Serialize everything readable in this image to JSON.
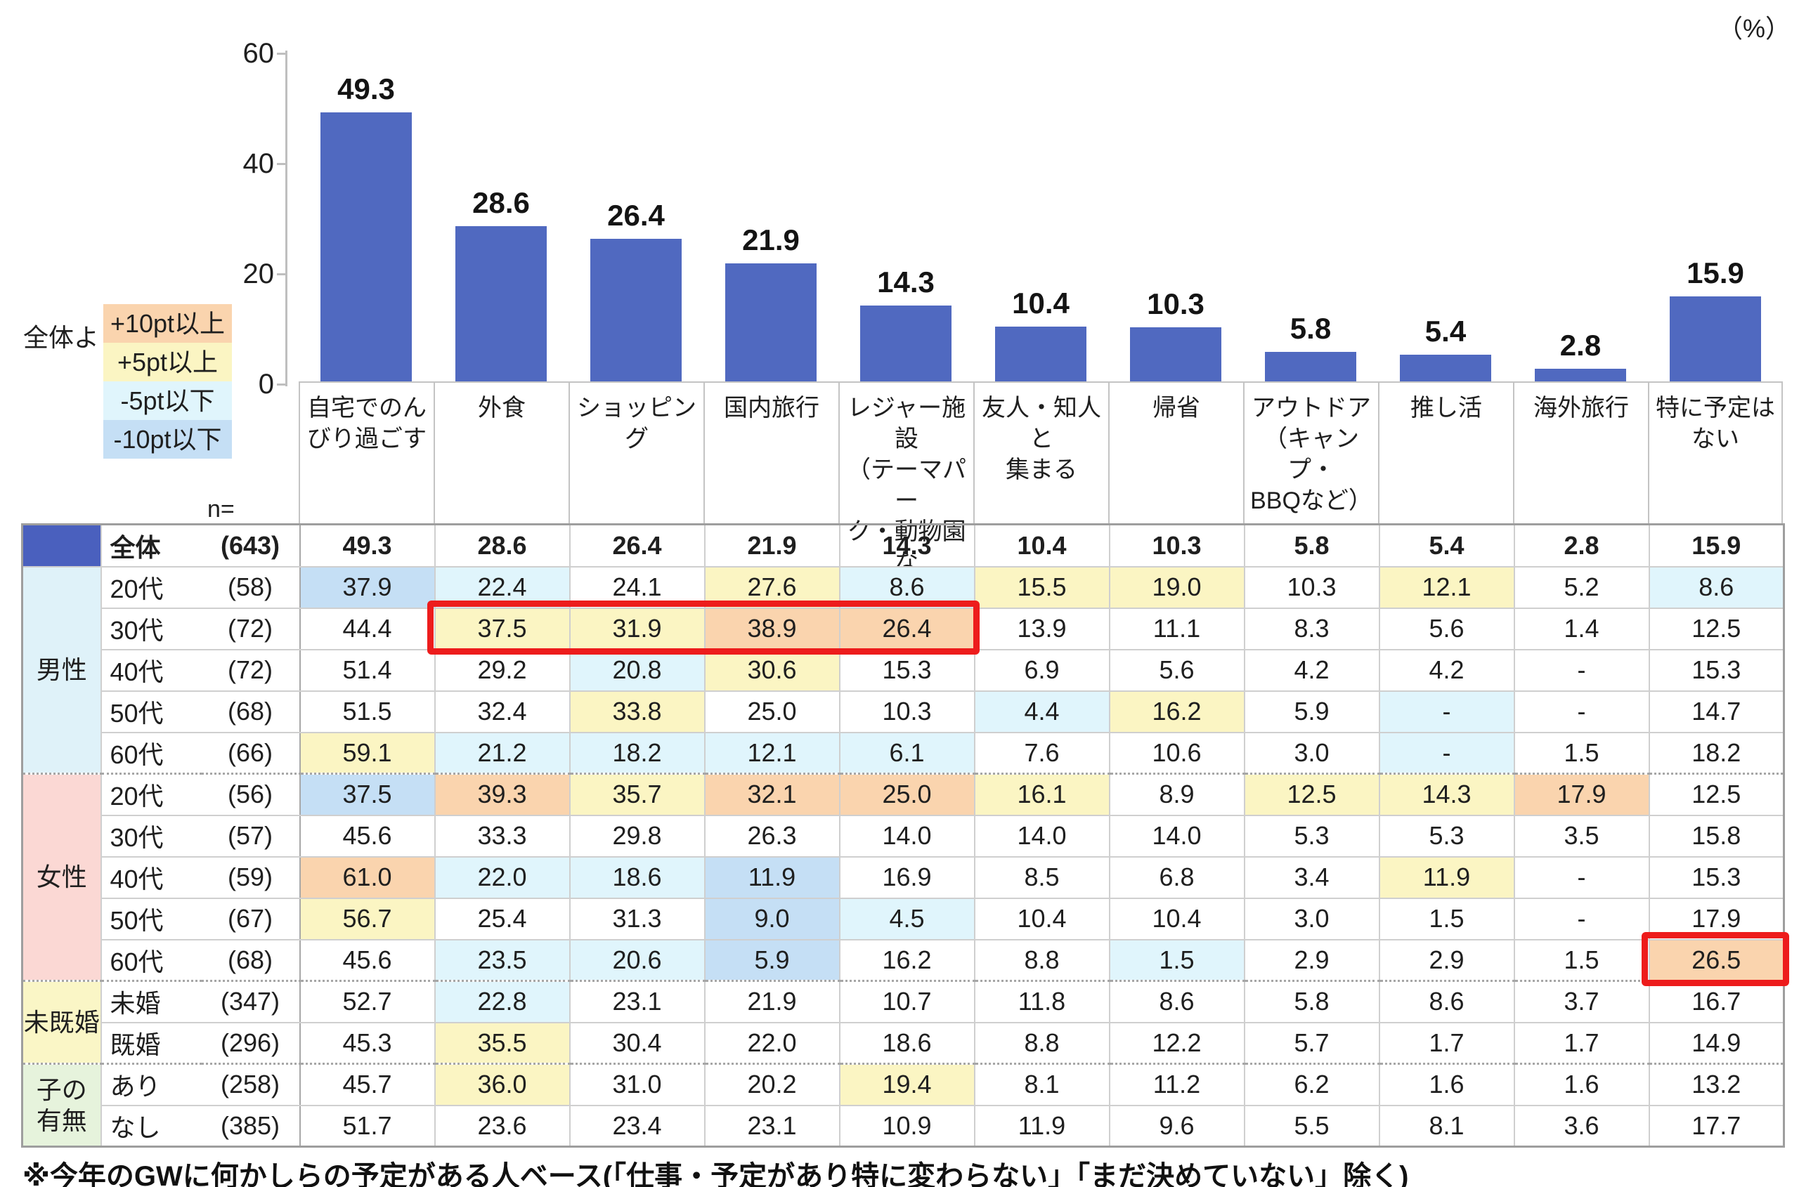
{
  "unit_label": "（%）",
  "legend": {
    "title": "全体より",
    "items": [
      {
        "label": "+10pt以上",
        "key": "plus10"
      },
      {
        "label": "+5pt以上",
        "key": "plus5"
      },
      {
        "label": "-5pt以下",
        "key": "minus5"
      },
      {
        "label": "-10pt以下",
        "key": "minus10"
      }
    ]
  },
  "colors": {
    "bar": "#5069C0",
    "header_blue": "#4A60BE",
    "plus10": "#FAD4AE",
    "plus5": "#FBF5C3",
    "minus5": "#E0F5FC",
    "minus10": "#C5DFF5",
    "group_male": "#DFF2F9",
    "group_female": "#FBD8D4",
    "group_marriage": "#FAF6C6",
    "group_child": "#E6F3DC",
    "red_box": "#ED1C1C"
  },
  "chart_data": {
    "type": "bar",
    "title": "",
    "unit": "%",
    "categories": [
      "自宅でのんびり過ごす",
      "外食",
      "ショッピング",
      "国内旅行",
      "レジャー施設（テーマパーク・動物園など）",
      "友人・知人と集まる",
      "帰省",
      "アウトドア（キャンプ・BBQなど）",
      "推し活",
      "海外旅行",
      "特に予定はない"
    ],
    "values": [
      49.3,
      28.6,
      26.4,
      21.9,
      14.3,
      10.4,
      10.3,
      5.8,
      5.4,
      2.8,
      15.9
    ],
    "ylim": [
      0,
      60
    ],
    "yticks": [
      0,
      20,
      40,
      60
    ],
    "grid": false,
    "legend_position": "left",
    "value_labels": true,
    "bar_color": "#5069C0"
  },
  "category_labels_wrapped": [
    "自宅でのん\nびり過ごす",
    "外食",
    "ショッピング",
    "国内旅行",
    "レジャー施設\n（テーマパー\nク・動物園な\nど）",
    "友人・知人と\n集まる",
    "帰省",
    "アウトドア\n（キャンプ・\nBBQなど）",
    "推し活",
    "海外旅行",
    "特に予定は\nない"
  ],
  "table": {
    "n_header": "n=",
    "header_row": {
      "label": "全体",
      "n": "(643)",
      "values": [
        "49.3",
        "28.6",
        "26.4",
        "21.9",
        "14.3",
        "10.4",
        "10.3",
        "5.8",
        "5.4",
        "2.8",
        "15.9"
      ]
    },
    "groups": [
      {
        "label": "男性",
        "key": "group_male",
        "rows": [
          {
            "label": "20代",
            "n": "(58)",
            "cells": [
              [
                "37.9",
                "m10"
              ],
              [
                "22.4",
                "m5"
              ],
              [
                "24.1",
                ""
              ],
              [
                "27.6",
                "p5"
              ],
              [
                "8.6",
                "m5"
              ],
              [
                "15.5",
                "p5"
              ],
              [
                "19.0",
                "p5"
              ],
              [
                "10.3",
                ""
              ],
              [
                "12.1",
                "p5"
              ],
              [
                "5.2",
                ""
              ],
              [
                "8.6",
                "m5"
              ]
            ]
          },
          {
            "label": "30代",
            "n": "(72)",
            "cells": [
              [
                "44.4",
                ""
              ],
              [
                "37.5",
                "p5"
              ],
              [
                "31.9",
                "p5"
              ],
              [
                "38.9",
                "p10"
              ],
              [
                "26.4",
                "p10"
              ],
              [
                "13.9",
                ""
              ],
              [
                "11.1",
                ""
              ],
              [
                "8.3",
                ""
              ],
              [
                "5.6",
                ""
              ],
              [
                "1.4",
                ""
              ],
              [
                "12.5",
                ""
              ]
            ]
          },
          {
            "label": "40代",
            "n": "(72)",
            "cells": [
              [
                "51.4",
                ""
              ],
              [
                "29.2",
                ""
              ],
              [
                "20.8",
                "m5"
              ],
              [
                "30.6",
                "p5"
              ],
              [
                "15.3",
                ""
              ],
              [
                "6.9",
                ""
              ],
              [
                "5.6",
                ""
              ],
              [
                "4.2",
                ""
              ],
              [
                "4.2",
                ""
              ],
              [
                "-",
                ""
              ],
              [
                "15.3",
                ""
              ]
            ]
          },
          {
            "label": "50代",
            "n": "(68)",
            "cells": [
              [
                "51.5",
                ""
              ],
              [
                "32.4",
                ""
              ],
              [
                "33.8",
                "p5"
              ],
              [
                "25.0",
                ""
              ],
              [
                "10.3",
                ""
              ],
              [
                "4.4",
                "m5"
              ],
              [
                "16.2",
                "p5"
              ],
              [
                "5.9",
                ""
              ],
              [
                "-",
                "m5"
              ],
              [
                "-",
                ""
              ],
              [
                "14.7",
                ""
              ]
            ]
          },
          {
            "label": "60代",
            "n": "(66)",
            "cells": [
              [
                "59.1",
                "p5"
              ],
              [
                "21.2",
                "m5"
              ],
              [
                "18.2",
                "m5"
              ],
              [
                "12.1",
                "m5"
              ],
              [
                "6.1",
                "m5"
              ],
              [
                "7.6",
                ""
              ],
              [
                "10.6",
                ""
              ],
              [
                "3.0",
                ""
              ],
              [
                "-",
                "m5"
              ],
              [
                "1.5",
                ""
              ],
              [
                "18.2",
                ""
              ]
            ]
          }
        ]
      },
      {
        "label": "女性",
        "key": "group_female",
        "rows": [
          {
            "label": "20代",
            "n": "(56)",
            "cells": [
              [
                "37.5",
                "m10"
              ],
              [
                "39.3",
                "p10"
              ],
              [
                "35.7",
                "p5"
              ],
              [
                "32.1",
                "p10"
              ],
              [
                "25.0",
                "p10"
              ],
              [
                "16.1",
                "p5"
              ],
              [
                "8.9",
                ""
              ],
              [
                "12.5",
                "p5"
              ],
              [
                "14.3",
                "p5"
              ],
              [
                "17.9",
                "p10"
              ],
              [
                "12.5",
                ""
              ]
            ]
          },
          {
            "label": "30代",
            "n": "(57)",
            "cells": [
              [
                "45.6",
                ""
              ],
              [
                "33.3",
                ""
              ],
              [
                "29.8",
                ""
              ],
              [
                "26.3",
                ""
              ],
              [
                "14.0",
                ""
              ],
              [
                "14.0",
                ""
              ],
              [
                "14.0",
                ""
              ],
              [
                "5.3",
                ""
              ],
              [
                "5.3",
                ""
              ],
              [
                "3.5",
                ""
              ],
              [
                "15.8",
                ""
              ]
            ]
          },
          {
            "label": "40代",
            "n": "(59)",
            "cells": [
              [
                "61.0",
                "p10"
              ],
              [
                "22.0",
                "m5"
              ],
              [
                "18.6",
                "m5"
              ],
              [
                "11.9",
                "m10"
              ],
              [
                "16.9",
                ""
              ],
              [
                "8.5",
                ""
              ],
              [
                "6.8",
                ""
              ],
              [
                "3.4",
                ""
              ],
              [
                "11.9",
                "p5"
              ],
              [
                "-",
                ""
              ],
              [
                "15.3",
                ""
              ]
            ]
          },
          {
            "label": "50代",
            "n": "(67)",
            "cells": [
              [
                "56.7",
                "p5"
              ],
              [
                "25.4",
                ""
              ],
              [
                "31.3",
                ""
              ],
              [
                "9.0",
                "m10"
              ],
              [
                "4.5",
                "m5"
              ],
              [
                "10.4",
                ""
              ],
              [
                "10.4",
                ""
              ],
              [
                "3.0",
                ""
              ],
              [
                "1.5",
                ""
              ],
              [
                "-",
                ""
              ],
              [
                "17.9",
                ""
              ]
            ]
          },
          {
            "label": "60代",
            "n": "(68)",
            "cells": [
              [
                "45.6",
                ""
              ],
              [
                "23.5",
                "m5"
              ],
              [
                "20.6",
                "m5"
              ],
              [
                "5.9",
                "m10"
              ],
              [
                "16.2",
                ""
              ],
              [
                "8.8",
                ""
              ],
              [
                "1.5",
                "m5"
              ],
              [
                "2.9",
                ""
              ],
              [
                "2.9",
                ""
              ],
              [
                "1.5",
                ""
              ],
              [
                "26.5",
                "p10"
              ]
            ]
          }
        ]
      },
      {
        "label": "未既婚",
        "key": "group_marriage",
        "rows": [
          {
            "label": "未婚",
            "n": "(347)",
            "cells": [
              [
                "52.7",
                ""
              ],
              [
                "22.8",
                "m5"
              ],
              [
                "23.1",
                ""
              ],
              [
                "21.9",
                ""
              ],
              [
                "10.7",
                ""
              ],
              [
                "11.8",
                ""
              ],
              [
                "8.6",
                ""
              ],
              [
                "5.8",
                ""
              ],
              [
                "8.6",
                ""
              ],
              [
                "3.7",
                ""
              ],
              [
                "16.7",
                ""
              ]
            ]
          },
          {
            "label": "既婚",
            "n": "(296)",
            "cells": [
              [
                "45.3",
                ""
              ],
              [
                "35.5",
                "p5"
              ],
              [
                "30.4",
                ""
              ],
              [
                "22.0",
                ""
              ],
              [
                "18.6",
                ""
              ],
              [
                "8.8",
                ""
              ],
              [
                "12.2",
                ""
              ],
              [
                "5.7",
                ""
              ],
              [
                "1.7",
                ""
              ],
              [
                "1.7",
                ""
              ],
              [
                "14.9",
                ""
              ]
            ]
          }
        ]
      },
      {
        "label": "子の\n有無",
        "key": "group_child",
        "rows": [
          {
            "label": "あり",
            "n": "(258)",
            "cells": [
              [
                "45.7",
                ""
              ],
              [
                "36.0",
                "p5"
              ],
              [
                "31.0",
                ""
              ],
              [
                "20.2",
                ""
              ],
              [
                "19.4",
                "p5"
              ],
              [
                "8.1",
                ""
              ],
              [
                "11.2",
                ""
              ],
              [
                "6.2",
                ""
              ],
              [
                "1.6",
                ""
              ],
              [
                "1.6",
                ""
              ],
              [
                "13.2",
                ""
              ]
            ]
          },
          {
            "label": "なし",
            "n": "(385)",
            "cells": [
              [
                "51.7",
                ""
              ],
              [
                "23.6",
                ""
              ],
              [
                "23.4",
                ""
              ],
              [
                "23.1",
                ""
              ],
              [
                "10.9",
                ""
              ],
              [
                "11.9",
                ""
              ],
              [
                "9.6",
                ""
              ],
              [
                "5.5",
                ""
              ],
              [
                "8.1",
                ""
              ],
              [
                "3.6",
                ""
              ],
              [
                "17.7",
                ""
              ]
            ]
          }
        ]
      }
    ],
    "red_boxes": [
      {
        "row_index": 1,
        "col_start": 1,
        "col_end": 4
      },
      {
        "row_index": 9,
        "col_start": 10,
        "col_end": 10
      }
    ]
  },
  "footnote": "※今年のGWに何かしらの予定がある人ベース(「仕事・予定があり特に変わらない」「まだ決めていない」除く)"
}
